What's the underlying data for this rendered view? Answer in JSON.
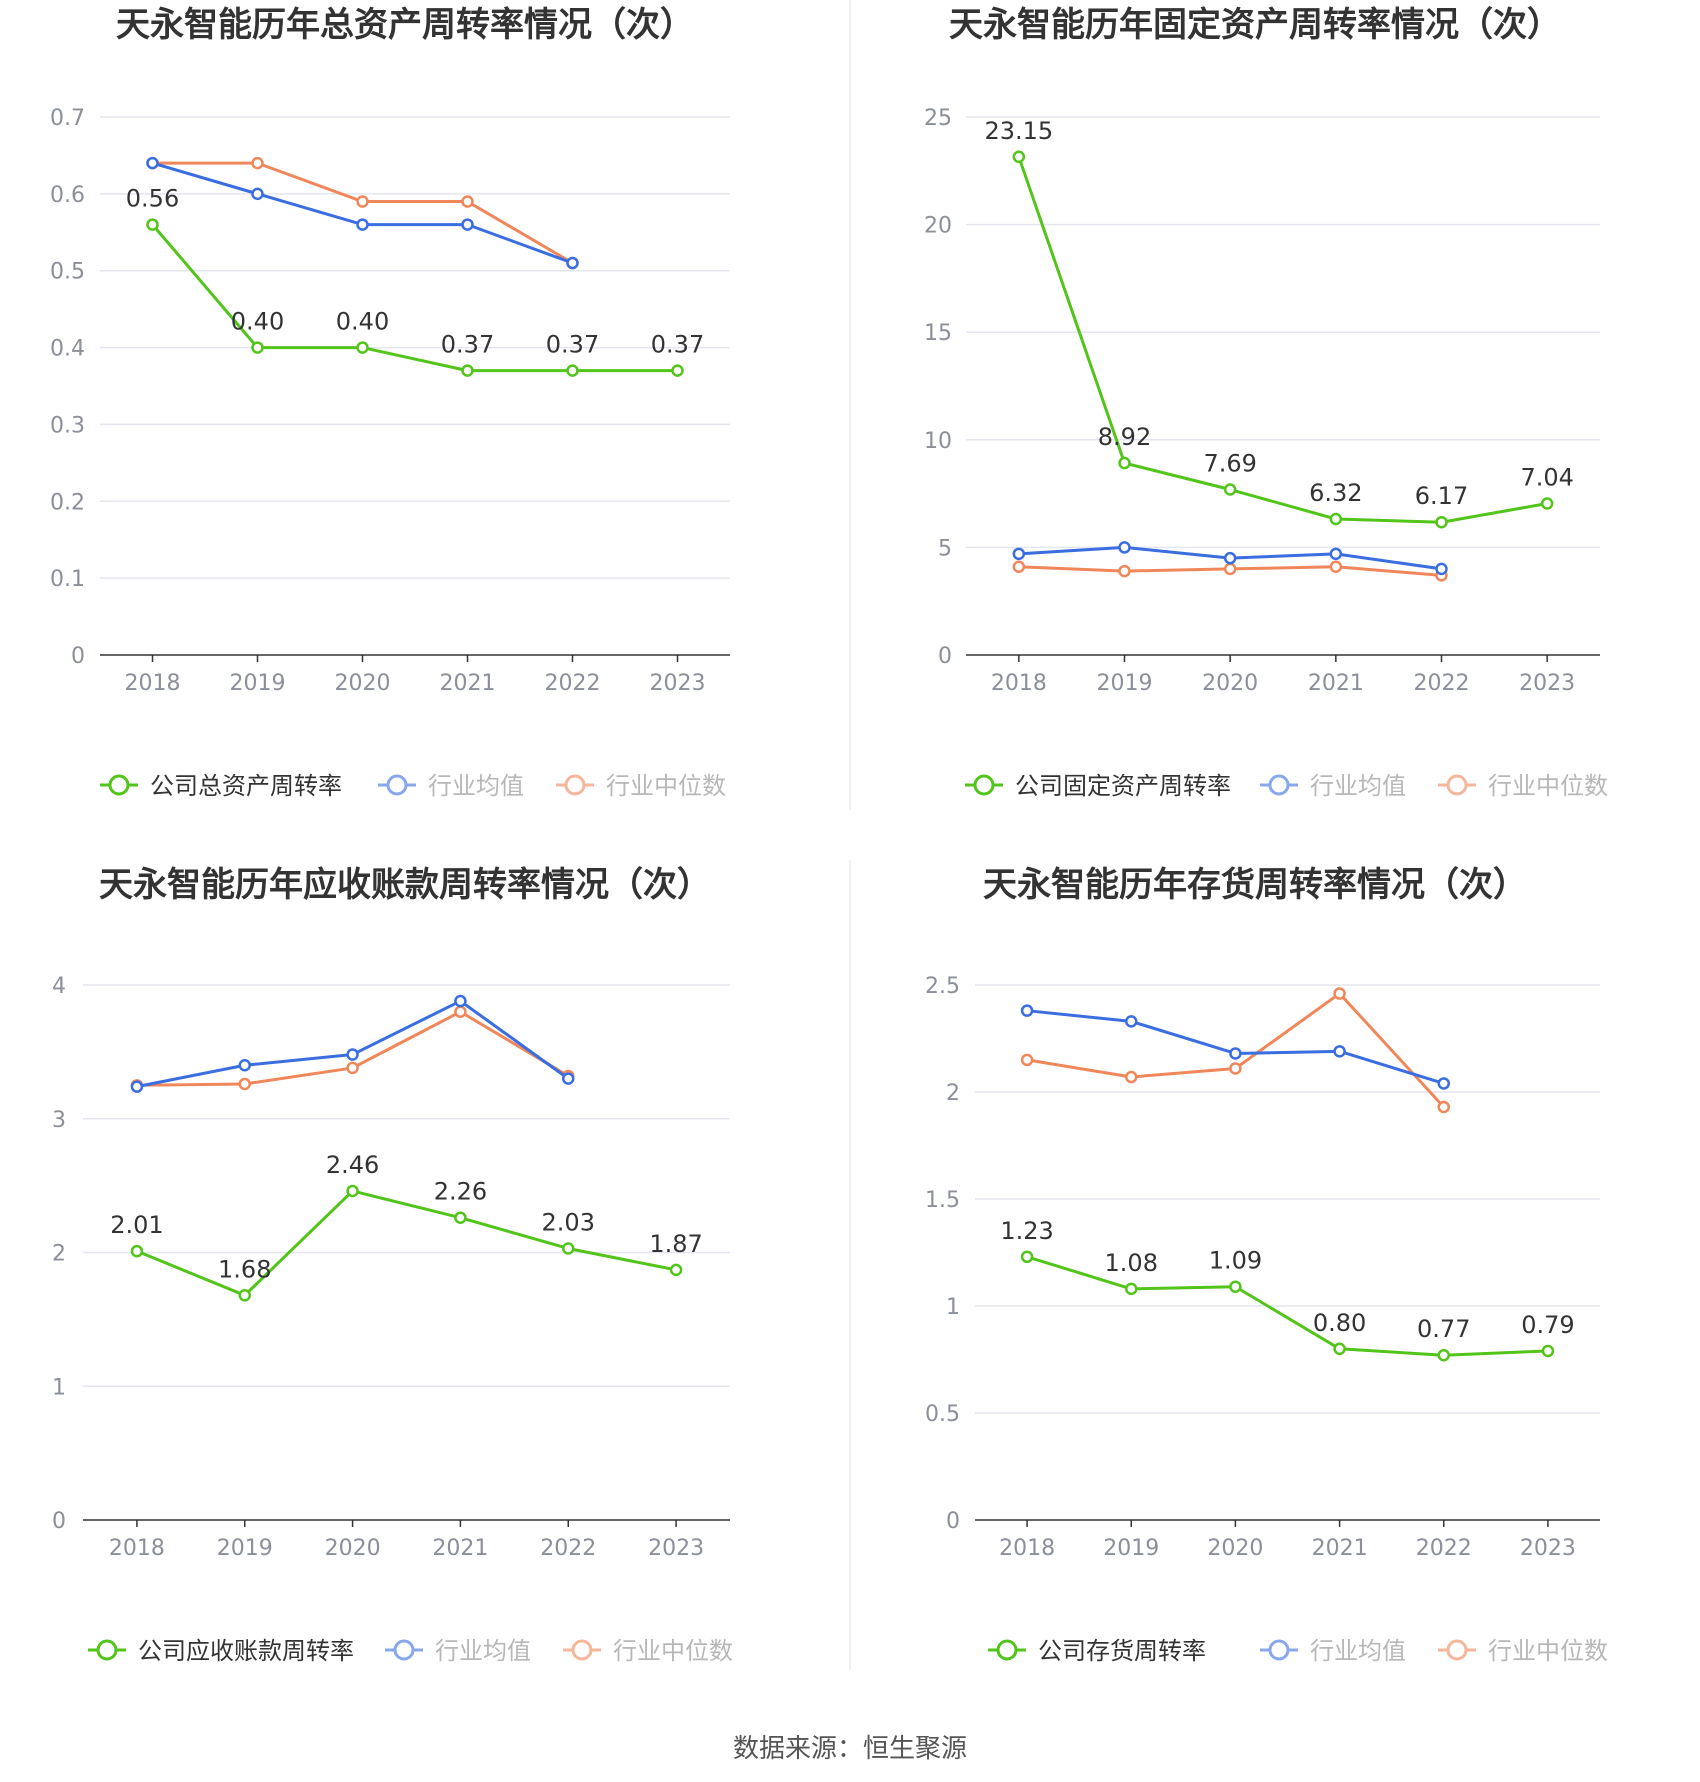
{
  "colors": {
    "company": "#52c41a",
    "avg": "#3a6ee0",
    "median": "#f0875a"
  },
  "legend_avg": "行业均值",
  "legend_median": "行业中位数",
  "source": "数据来源：恒生聚源",
  "chart_data": [
    {
      "type": "line",
      "title": "天永智能历年总资产周转率情况（次）",
      "categories": [
        "2018",
        "2019",
        "2020",
        "2021",
        "2022",
        "2023"
      ],
      "yticks": [
        "0",
        "0.1",
        "0.2",
        "0.3",
        "0.4",
        "0.5",
        "0.6",
        "0.7"
      ],
      "ylim": [
        0,
        0.7
      ],
      "series": [
        {
          "name": "公司总资产周转率",
          "values": [
            0.56,
            0.4,
            0.4,
            0.37,
            0.37,
            0.37
          ],
          "labels": [
            "0.56",
            "0.40",
            "0.40",
            "0.37",
            "0.37",
            "0.37"
          ]
        },
        {
          "name": "行业均值",
          "values": [
            0.64,
            0.6,
            0.56,
            0.56,
            0.51,
            null
          ]
        },
        {
          "name": "行业中位数",
          "values": [
            0.64,
            0.64,
            0.59,
            0.59,
            0.51,
            null
          ]
        }
      ]
    },
    {
      "type": "line",
      "title": "天永智能历年固定资产周转率情况（次）",
      "categories": [
        "2018",
        "2019",
        "2020",
        "2021",
        "2022",
        "2023"
      ],
      "yticks": [
        "0",
        "5",
        "10",
        "15",
        "20",
        "25"
      ],
      "ylim": [
        0,
        25
      ],
      "series": [
        {
          "name": "公司固定资产周转率",
          "values": [
            23.15,
            8.92,
            7.69,
            6.32,
            6.17,
            7.04
          ],
          "labels": [
            "23.15",
            "8.92",
            "7.69",
            "6.32",
            "6.17",
            "7.04"
          ]
        },
        {
          "name": "行业均值",
          "values": [
            4.7,
            5.0,
            4.5,
            4.7,
            4.0,
            null
          ]
        },
        {
          "name": "行业中位数",
          "values": [
            4.1,
            3.9,
            4.0,
            4.1,
            3.7,
            null
          ]
        }
      ]
    },
    {
      "type": "line",
      "title": "天永智能历年应收账款周转率情况（次）",
      "categories": [
        "2018",
        "2019",
        "2020",
        "2021",
        "2022",
        "2023"
      ],
      "yticks": [
        "0",
        "1",
        "2",
        "3",
        "4"
      ],
      "ylim": [
        0,
        4
      ],
      "series": [
        {
          "name": "公司应收账款周转率",
          "values": [
            2.01,
            1.68,
            2.46,
            2.26,
            2.03,
            1.87
          ],
          "labels": [
            "2.01",
            "1.68",
            "2.46",
            "2.26",
            "2.03",
            "1.87"
          ]
        },
        {
          "name": "行业均值",
          "values": [
            3.24,
            3.4,
            3.48,
            3.88,
            3.3,
            null
          ]
        },
        {
          "name": "行业中位数",
          "values": [
            3.25,
            3.26,
            3.38,
            3.8,
            3.32,
            null
          ]
        }
      ]
    },
    {
      "type": "line",
      "title": "天永智能历年存货周转率情况（次）",
      "categories": [
        "2018",
        "2019",
        "2020",
        "2021",
        "2022",
        "2023"
      ],
      "yticks": [
        "0",
        "0.5",
        "1",
        "1.5",
        "2",
        "2.5"
      ],
      "ylim": [
        0,
        2.5
      ],
      "series": [
        {
          "name": "公司存货周转率",
          "values": [
            1.23,
            1.08,
            1.09,
            0.8,
            0.77,
            0.79
          ],
          "labels": [
            "1.23",
            "1.08",
            "1.09",
            "0.80",
            "0.77",
            "0.79"
          ]
        },
        {
          "name": "行业均值",
          "values": [
            2.38,
            2.33,
            2.18,
            2.19,
            2.04,
            null
          ]
        },
        {
          "name": "行业中位数",
          "values": [
            2.15,
            2.07,
            2.11,
            2.46,
            1.93,
            null
          ]
        }
      ]
    }
  ]
}
